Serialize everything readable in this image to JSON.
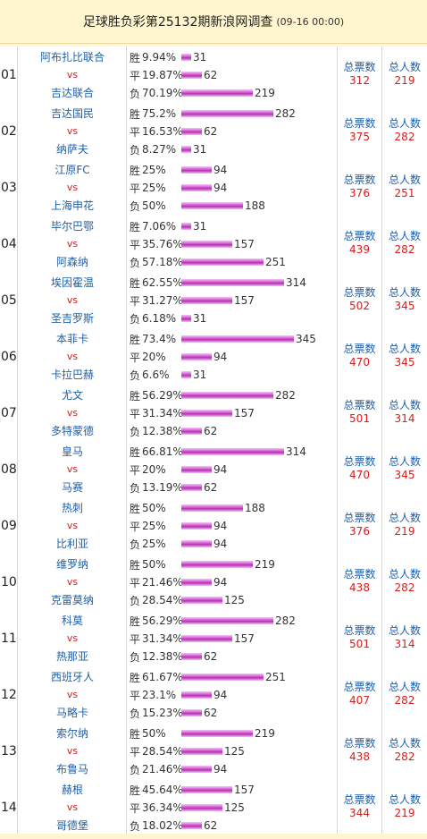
{
  "header": {
    "title": "足球胜负彩第25132期新浪网调查",
    "time": "(09-16 00:00)"
  },
  "labels": {
    "win": "胜",
    "draw": "平",
    "lose": "负",
    "vs": "vs",
    "total_votes": "总票数",
    "total_people": "总人数"
  },
  "bar_scale": 345,
  "matches": [
    {
      "no": "01",
      "home": "阿布扎比联合",
      "away": "吉达联合",
      "win_pct": "9.94%",
      "win": 31,
      "draw_pct": "19.87%",
      "draw": 62,
      "lose_pct": "70.19%",
      "lose": 219,
      "total_votes": "312",
      "total_people": "219"
    },
    {
      "no": "02",
      "home": "吉达国民",
      "away": "纳萨夫",
      "win_pct": "75.2%",
      "win": 282,
      "draw_pct": "16.53%",
      "draw": 62,
      "lose_pct": "8.27%",
      "lose": 31,
      "total_votes": "375",
      "total_people": "282"
    },
    {
      "no": "03",
      "home": "江原FC",
      "away": "上海申花",
      "win_pct": "25%",
      "win": 94,
      "draw_pct": "25%",
      "draw": 94,
      "lose_pct": "50%",
      "lose": 188,
      "total_votes": "376",
      "total_people": "251"
    },
    {
      "no": "04",
      "home": "毕尔巴鄂",
      "away": "阿森纳",
      "win_pct": "7.06%",
      "win": 31,
      "draw_pct": "35.76%",
      "draw": 157,
      "lose_pct": "57.18%",
      "lose": 251,
      "total_votes": "439",
      "total_people": "282"
    },
    {
      "no": "05",
      "home": "埃因霍温",
      "away": "圣吉罗斯",
      "win_pct": "62.55%",
      "win": 314,
      "draw_pct": "31.27%",
      "draw": 157,
      "lose_pct": "6.18%",
      "lose": 31,
      "total_votes": "502",
      "total_people": "345"
    },
    {
      "no": "06",
      "home": "本菲卡",
      "away": "卡拉巴赫",
      "win_pct": "73.4%",
      "win": 345,
      "draw_pct": "20%",
      "draw": 94,
      "lose_pct": "6.6%",
      "lose": 31,
      "total_votes": "470",
      "total_people": "345"
    },
    {
      "no": "07",
      "home": "尤文",
      "away": "多特蒙德",
      "win_pct": "56.29%",
      "win": 282,
      "draw_pct": "31.34%",
      "draw": 157,
      "lose_pct": "12.38%",
      "lose": 62,
      "total_votes": "501",
      "total_people": "314"
    },
    {
      "no": "08",
      "home": "皇马",
      "away": "马赛",
      "win_pct": "66.81%",
      "win": 314,
      "draw_pct": "20%",
      "draw": 94,
      "lose_pct": "13.19%",
      "lose": 62,
      "total_votes": "470",
      "total_people": "345"
    },
    {
      "no": "09",
      "home": "热刺",
      "away": "比利亚",
      "win_pct": "50%",
      "win": 188,
      "draw_pct": "25%",
      "draw": 94,
      "lose_pct": "25%",
      "lose": 94,
      "total_votes": "376",
      "total_people": "219"
    },
    {
      "no": "10",
      "home": "维罗纳",
      "away": "克雷莫纳",
      "win_pct": "50%",
      "win": 219,
      "draw_pct": "21.46%",
      "draw": 94,
      "lose_pct": "28.54%",
      "lose": 125,
      "total_votes": "438",
      "total_people": "282"
    },
    {
      "no": "11",
      "home": "科莫",
      "away": "热那亚",
      "win_pct": "56.29%",
      "win": 282,
      "draw_pct": "31.34%",
      "draw": 157,
      "lose_pct": "12.38%",
      "lose": 62,
      "total_votes": "501",
      "total_people": "314"
    },
    {
      "no": "12",
      "home": "西班牙人",
      "away": "马略卡",
      "win_pct": "61.67%",
      "win": 251,
      "draw_pct": "23.1%",
      "draw": 94,
      "lose_pct": "15.23%",
      "lose": 62,
      "total_votes": "407",
      "total_people": "282"
    },
    {
      "no": "13",
      "home": "索尔纳",
      "away": "布鲁马",
      "win_pct": "50%",
      "win": 219,
      "draw_pct": "28.54%",
      "draw": 125,
      "lose_pct": "21.46%",
      "lose": 94,
      "total_votes": "438",
      "total_people": "282"
    },
    {
      "no": "14",
      "home": "赫根",
      "away": "哥德堡",
      "win_pct": "45.64%",
      "win": 157,
      "draw_pct": "36.34%",
      "draw": 125,
      "lose_pct": "18.02%",
      "lose": 62,
      "total_votes": "344",
      "total_people": "219"
    }
  ]
}
